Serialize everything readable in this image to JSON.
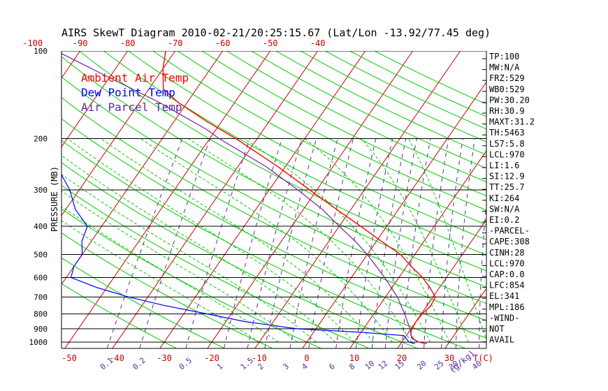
{
  "chart_data": {
    "type": "line",
    "title": "AIRS SkewT Diagram 2010-02-21/20:25:15.67 (Lat/Lon -13.92/77.45 deg)",
    "ylabel": "PRESSURE (MB)",
    "xlabel": "T(C)",
    "mixing_ratio_unit": "(g/kg)",
    "y_scale": "log",
    "ylim": [
      1050,
      100
    ],
    "xlim": [
      -50,
      40
    ],
    "pressure_ticks": [
      100,
      200,
      300,
      400,
      500,
      600,
      700,
      800,
      900,
      1000
    ],
    "bottom_temp_ticks": [
      -50,
      -40,
      -30,
      -20,
      -10,
      0,
      10,
      20,
      30
    ],
    "top_temp_ticks": [
      -120,
      -110,
      -100,
      -90,
      -80,
      -70,
      -60,
      -50,
      -40
    ],
    "mixing_ratio_labels": [
      "0.1",
      "0.2",
      "0.5",
      "1",
      "1.5",
      "2",
      "3",
      "4",
      "6",
      "8",
      "10",
      "12",
      "15",
      "20",
      "25",
      "30",
      "40"
    ],
    "legend": [
      "Ambient Air Temp",
      "Dew Point Temp",
      "Air Parcel Temp"
    ],
    "colors": {
      "ambient": "#ff0000",
      "dewpoint": "#0000ff",
      "parcel": "#7a1fa2",
      "isotherm": "#cc0000",
      "dry_adiabat": "#00cc00",
      "moist_adiabat": "#00cc00",
      "mixing_ratio": "#5a2ca0",
      "isobar": "#000000"
    },
    "series": [
      {
        "name": "Ambient Air Temp",
        "points": [
          [
            1013,
            25.5
          ],
          [
            1000,
            23.5
          ],
          [
            975,
            22
          ],
          [
            950,
            21
          ],
          [
            925,
            20.5
          ],
          [
            900,
            20.2
          ],
          [
            850,
            20
          ],
          [
            800,
            20.2
          ],
          [
            750,
            20.8
          ],
          [
            700,
            20.5
          ],
          [
            650,
            18
          ],
          [
            600,
            15
          ],
          [
            550,
            11
          ],
          [
            500,
            7
          ],
          [
            450,
            1
          ],
          [
            400,
            -5.5
          ],
          [
            350,
            -13
          ],
          [
            300,
            -21.5
          ],
          [
            250,
            -31.5
          ],
          [
            200,
            -44.5
          ],
          [
            175,
            -53
          ],
          [
            150,
            -62
          ],
          [
            135,
            -67
          ],
          [
            115,
            -70
          ],
          [
            100,
            -72
          ]
        ]
      },
      {
        "name": "Dew Point Temp",
        "points": [
          [
            1013,
            23
          ],
          [
            1000,
            21.5
          ],
          [
            975,
            20.5
          ],
          [
            950,
            19.5
          ],
          [
            925,
            10
          ],
          [
            900,
            -4
          ],
          [
            850,
            -16
          ],
          [
            800,
            -25
          ],
          [
            750,
            -35
          ],
          [
            700,
            -44
          ],
          [
            650,
            -52
          ],
          [
            600,
            -59
          ],
          [
            550,
            -60
          ],
          [
            500,
            -60
          ],
          [
            450,
            -62
          ],
          [
            400,
            -63
          ],
          [
            350,
            -68
          ],
          [
            300,
            -72
          ],
          [
            250,
            -78
          ],
          [
            200,
            -85
          ],
          [
            150,
            -90
          ],
          [
            100,
            -95
          ]
        ]
      },
      {
        "name": "Air Parcel Temp",
        "points": [
          [
            1000,
            23.5
          ],
          [
            970,
            21.5
          ],
          [
            900,
            19.8
          ],
          [
            854,
            18.3
          ],
          [
            800,
            16.5
          ],
          [
            700,
            12.5
          ],
          [
            600,
            7
          ],
          [
            500,
            0
          ],
          [
            450,
            -4.5
          ],
          [
            400,
            -10
          ],
          [
            350,
            -16
          ],
          [
            300,
            -24
          ],
          [
            250,
            -34
          ],
          [
            200,
            -48
          ],
          [
            186,
            -52
          ],
          [
            150,
            -66
          ],
          [
            120,
            -82
          ],
          [
            100,
            -95
          ]
        ]
      }
    ]
  },
  "stats": [
    "TP:100",
    "MW:N/A",
    "FRZ:529",
    "WB0:529",
    "PW:30.20",
    "RH:30.9",
    "MAXT:31.2",
    "TH:5463",
    "L57:5.8",
    "LCL:970",
    "LI:1.6",
    "SI:12.9",
    "TT:25.7",
    "KI:264",
    "SW:N/A",
    "EI:0.2",
    "-PARCEL-",
    "CAPE:308",
    "CINH:28",
    "LCL:970",
    "CAP:0.0",
    "LFC:854",
    "EL:341",
    "MPL:186",
    "-WIND-",
    "NOT",
    "AVAIL"
  ]
}
